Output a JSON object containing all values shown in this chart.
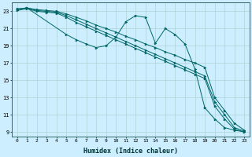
{
  "xlabel": "Humidex (Indice chaleur)",
  "bg_color": "#cceeff",
  "grid_color": "#b0d4d4",
  "line_color": "#006666",
  "xlim": [
    -0.5,
    23.5
  ],
  "ylim": [
    8.5,
    24.0
  ],
  "xticks": [
    0,
    1,
    2,
    3,
    4,
    5,
    6,
    7,
    8,
    9,
    10,
    11,
    12,
    13,
    14,
    15,
    16,
    17,
    18,
    19,
    20,
    21,
    22,
    23
  ],
  "yticks": [
    9,
    11,
    13,
    15,
    17,
    19,
    21,
    23
  ],
  "series": [
    {
      "x": [
        0,
        1,
        2,
        3,
        4,
        5,
        6,
        7,
        8,
        9,
        10,
        11,
        12,
        13,
        14,
        15,
        16,
        17,
        18,
        19,
        20,
        21,
        22,
        23
      ],
      "y": [
        23.3,
        23.4,
        23.2,
        23.1,
        23.0,
        22.7,
        22.3,
        21.9,
        21.4,
        21.0,
        20.6,
        20.1,
        19.7,
        19.2,
        18.8,
        18.3,
        17.9,
        17.4,
        17.0,
        16.5,
        13.0,
        11.5,
        10.0,
        9.2
      ],
      "marker": ">"
    },
    {
      "x": [
        0,
        1,
        2,
        3,
        4,
        5,
        6,
        7,
        8,
        9,
        10,
        11,
        12,
        13,
        14,
        15,
        16,
        17,
        18,
        19,
        20,
        21,
        22,
        23
      ],
      "y": [
        23.2,
        23.4,
        23.1,
        23.0,
        22.9,
        22.5,
        22.0,
        21.5,
        21.0,
        20.5,
        20.0,
        19.5,
        19.0,
        18.5,
        18.0,
        17.5,
        17.0,
        16.5,
        16.0,
        15.5,
        12.5,
        11.0,
        9.5,
        9.1
      ],
      "marker": ">"
    },
    {
      "x": [
        0,
        1,
        2,
        3,
        4,
        5,
        6,
        7,
        8,
        9,
        10,
        11,
        12,
        13,
        14,
        15,
        16,
        17,
        18,
        19,
        20,
        21,
        22,
        23
      ],
      "y": [
        23.1,
        23.3,
        23.0,
        22.9,
        22.8,
        22.3,
        21.7,
        21.2,
        20.7,
        20.2,
        19.7,
        19.2,
        18.7,
        18.2,
        17.7,
        17.2,
        16.7,
        16.2,
        15.7,
        15.2,
        12.0,
        10.5,
        9.3,
        9.0
      ],
      "marker": ">"
    },
    {
      "x": [
        1,
        5,
        6,
        7,
        8,
        9,
        10,
        11,
        12,
        13,
        14,
        15,
        16,
        17,
        18,
        19,
        20,
        21,
        22,
        23
      ],
      "y": [
        23.4,
        20.3,
        19.7,
        19.2,
        18.8,
        19.0,
        20.0,
        21.8,
        22.5,
        22.3,
        19.3,
        21.0,
        20.3,
        19.2,
        16.3,
        11.8,
        10.5,
        9.5,
        9.2,
        9.0
      ],
      "marker": ">"
    }
  ]
}
